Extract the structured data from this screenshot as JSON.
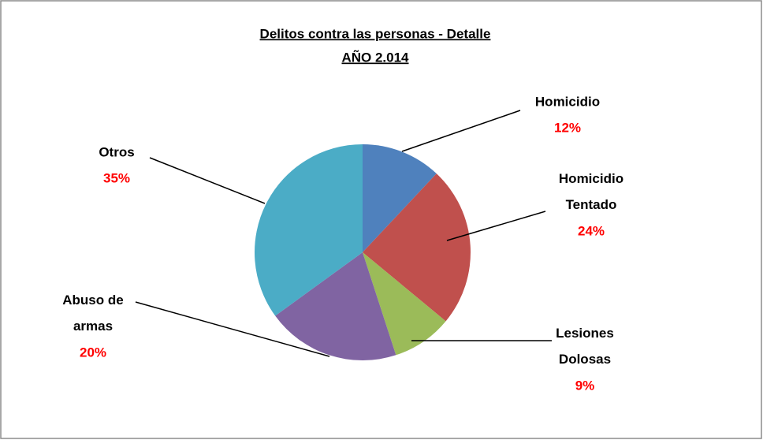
{
  "chart_data": {
    "type": "pie",
    "title": "Delitos contra las personas - Detalle",
    "subtitle": "AÑO 2.014",
    "categories": [
      "Homicidio",
      "Homicidio Tentado",
      "Lesiones Dolosas",
      "Abuso de armas",
      "Otros"
    ],
    "values": [
      12,
      24,
      9,
      20,
      35
    ],
    "value_labels": [
      "12%",
      "24%",
      "9%",
      "20%",
      "35%"
    ],
    "colors": [
      "#4f81bd",
      "#c0504d",
      "#9bbb59",
      "#8064a2",
      "#4bacc6"
    ]
  }
}
